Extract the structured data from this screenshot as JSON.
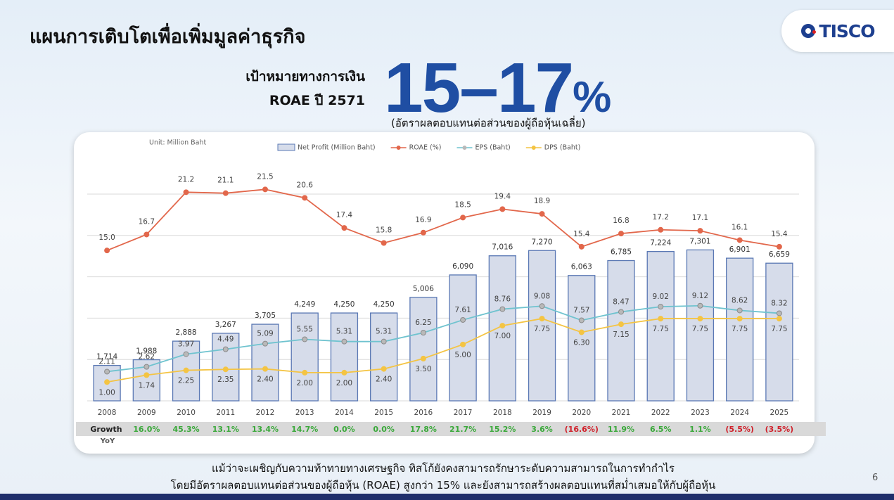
{
  "header": {
    "title": "แผนการเติบโตเพื่อเพิ่มมูลค่าธุรกิจ",
    "logo": "TISCO"
  },
  "target": {
    "label_lines": [
      "เป้าหมายทางการเงิน",
      "ROAE ปี 2571"
    ],
    "range": "15–17",
    "unit": "%",
    "note": "(อัตราผลตอบแทนต่อส่วนของผู้ถือหุ้นเฉลี่ย)"
  },
  "chart_data": {
    "type": "bar",
    "unit_note": "Unit: Million Baht",
    "categories": [
      "2008",
      "2009",
      "2010",
      "2011",
      "2012",
      "2013",
      "2014",
      "2015",
      "2016",
      "2017",
      "2018",
      "2019",
      "2020",
      "2021",
      "2022",
      "2023",
      "2024",
      "2025"
    ],
    "series": [
      {
        "name": "Net Profit (Million Baht)",
        "type": "bar",
        "color": "#d6dcea",
        "values": [
          1714,
          1988,
          2888,
          3267,
          3705,
          4249,
          4250,
          4250,
          5006,
          6090,
          7016,
          7270,
          6063,
          6785,
          7224,
          7301,
          6901,
          6659
        ],
        "value_labels": [
          "1,714",
          "1,988",
          "2,888",
          "3,267",
          "3,705",
          "4,249",
          "4,250",
          "4,250",
          "5,006",
          "6,090",
          "7,016",
          "7,270",
          "6,063",
          "6,785",
          "7,224",
          "7,301",
          "6,901",
          "6,659"
        ]
      },
      {
        "name": "ROAE (%)",
        "type": "line",
        "axis": "y2",
        "color": "#e2674b",
        "values": [
          15.0,
          16.7,
          21.2,
          21.1,
          21.5,
          20.6,
          17.4,
          15.8,
          16.9,
          18.5,
          19.4,
          18.9,
          15.4,
          16.8,
          17.2,
          17.1,
          16.1,
          15.4
        ],
        "value_labels": [
          "15.0",
          "16.7",
          "21.2",
          "21.1",
          "21.5",
          "20.6",
          "17.4",
          "15.8",
          "16.9",
          "18.5",
          "19.4",
          "18.9",
          "15.4",
          "16.8",
          "17.2",
          "17.1",
          "16.1",
          "15.4"
        ]
      },
      {
        "name": "EPS (Baht)",
        "type": "line",
        "axis": "y2",
        "color": "#6fc3cf",
        "values": [
          2.11,
          2.62,
          3.97,
          4.49,
          5.09,
          5.55,
          5.31,
          5.31,
          6.25,
          7.61,
          8.76,
          9.08,
          7.57,
          8.47,
          9.02,
          9.12,
          8.62,
          8.32
        ],
        "value_labels": [
          "2.11",
          "2.62",
          "3.97",
          "4.49",
          "5.09",
          "5.55",
          "5.31",
          "5.31",
          "6.25",
          "7.61",
          "8.76",
          "9.08",
          "7.57",
          "8.47",
          "9.02",
          "9.12",
          "8.62",
          "8.32"
        ]
      },
      {
        "name": "DPS (Baht)",
        "type": "line",
        "axis": "y2",
        "color": "#f4c443",
        "values": [
          1.0,
          1.74,
          2.25,
          2.35,
          2.4,
          2.0,
          2.0,
          2.4,
          3.5,
          5.0,
          7.0,
          7.75,
          6.3,
          7.15,
          7.75,
          7.75,
          7.75,
          7.75
        ],
        "value_labels": [
          "1.00",
          "1.74",
          "2.25",
          "2.35",
          "2.40",
          "2.00",
          "2.00",
          "2.40",
          "3.50",
          "5.00",
          "7.00",
          "7.75",
          "6.30",
          "7.15",
          "7.75",
          "7.75",
          "7.75",
          "7.75"
        ]
      }
    ],
    "ylim": [
      0,
      10000
    ],
    "yticks": [
      0,
      2000,
      4000,
      6000,
      8000,
      10000
    ],
    "y2lim": [
      -1,
      21
    ],
    "grid": true,
    "growth": {
      "label": "Growth",
      "sublabel": "YoY",
      "values": [
        null,
        16.0,
        45.3,
        13.1,
        13.4,
        14.7,
        0.0,
        0.0,
        17.8,
        21.7,
        15.2,
        3.6,
        -16.6,
        11.9,
        6.5,
        1.1,
        -5.5,
        -3.5
      ],
      "value_labels": [
        null,
        "16.0%",
        "45.3%",
        "13.1%",
        "13.4%",
        "14.7%",
        "0.0%",
        "0.0%",
        "17.8%",
        "21.7%",
        "15.2%",
        "3.6%",
        "(16.6%)",
        "11.9%",
        "6.5%",
        "1.1%",
        "(5.5%)",
        "(3.5%)"
      ]
    }
  },
  "footer": {
    "lines": [
      "แม้ว่าจะเผชิญกับความท้าทายทางเศรษฐกิจ ทิสโก้ยังคงสามารถรักษาระดับความสามารถในการทำกำไร",
      "โดยมีอัตราผลตอบแทนต่อส่วนของผู้ถือหุ้น (ROAE) สูงกว่า 15% และยังสามารถสร้างผลตอบแทนที่สม่ำเสมอให้กับผู้ถือหุ้น"
    ],
    "page": 6
  }
}
